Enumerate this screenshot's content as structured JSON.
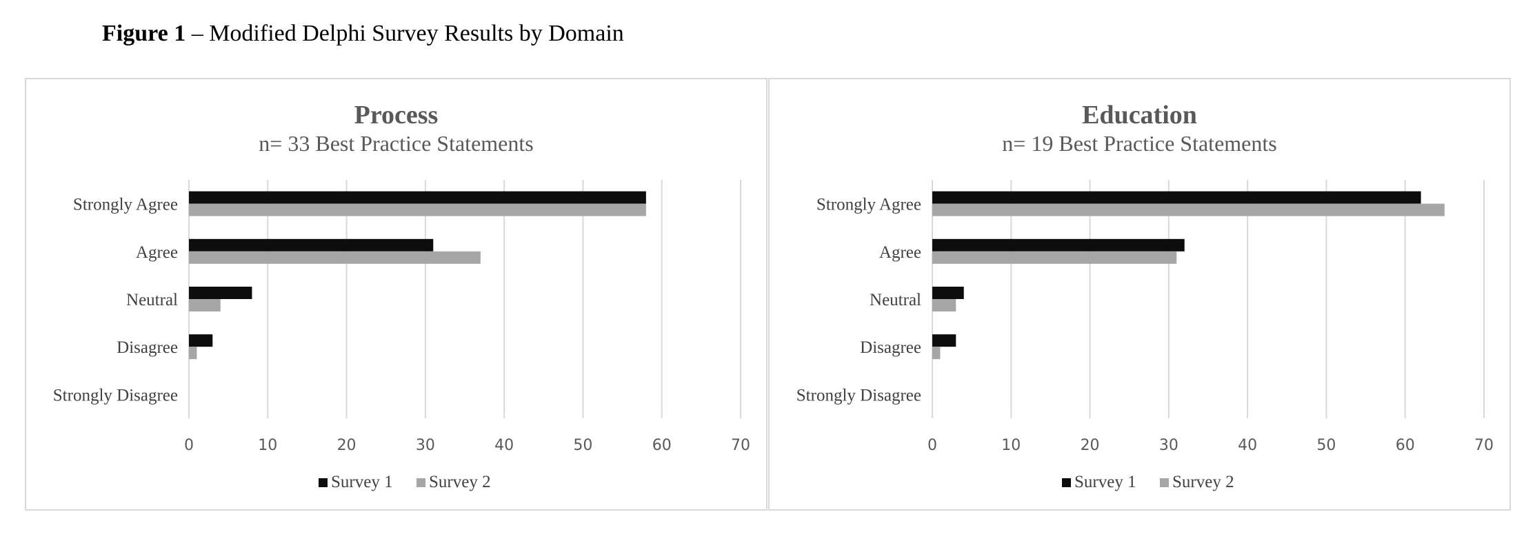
{
  "figure": {
    "label": "Figure 1",
    "caption": " – Modified Delphi Survey Results by Domain"
  },
  "colors": {
    "survey1": "#0d0d0d",
    "survey2": "#a6a6a6",
    "grid": "#d9d9d9",
    "title": "#595959",
    "text": "#404040"
  },
  "chart_data": [
    {
      "type": "bar",
      "orientation": "horizontal",
      "title": "Process",
      "subtitle": "n= 33 Best Practice Statements",
      "categories": [
        "Strongly Agree",
        "Agree",
        "Neutral",
        "Disagree",
        "Strongly Disagree"
      ],
      "series": [
        {
          "name": "Survey 1",
          "values": [
            58,
            31,
            8,
            3,
            0
          ]
        },
        {
          "name": "Survey 2",
          "values": [
            58,
            37,
            4,
            1,
            0
          ]
        }
      ],
      "xlim": [
        0,
        70
      ],
      "xticks": [
        0,
        10,
        20,
        30,
        40,
        50,
        60,
        70
      ],
      "grid": true,
      "legend": "bottom"
    },
    {
      "type": "bar",
      "orientation": "horizontal",
      "title": "Education",
      "subtitle": "n= 19 Best Practice Statements",
      "categories": [
        "Strongly Agree",
        "Agree",
        "Neutral",
        "Disagree",
        "Strongly Disagree"
      ],
      "series": [
        {
          "name": "Survey 1",
          "values": [
            62,
            32,
            4,
            3,
            0
          ]
        },
        {
          "name": "Survey 2",
          "values": [
            65,
            31,
            3,
            1,
            0
          ]
        }
      ],
      "xlim": [
        0,
        70
      ],
      "xticks": [
        0,
        10,
        20,
        30,
        40,
        50,
        60,
        70
      ],
      "grid": true,
      "legend": "bottom"
    }
  ]
}
